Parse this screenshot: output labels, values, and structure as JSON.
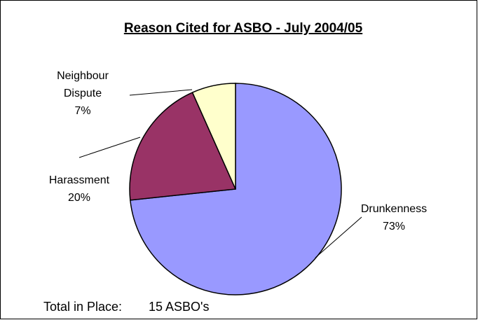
{
  "chart_data": {
    "type": "pie",
    "title": "Reason Cited for ASBO - July 2004/05",
    "slices": [
      {
        "label": "Drunkenness",
        "percent_label": "73%",
        "value": 73.33,
        "color": "#9999FF"
      },
      {
        "label": "Harassment",
        "percent_label": "20%",
        "value": 20.0,
        "color": "#993366"
      },
      {
        "label": "Neighbour Dispute",
        "percent_label": "7%",
        "value": 6.67,
        "color": "#FFFFCC"
      }
    ],
    "footer": {
      "label": "Total in Place:",
      "value": "15 ASBO's"
    },
    "legend": "none"
  }
}
